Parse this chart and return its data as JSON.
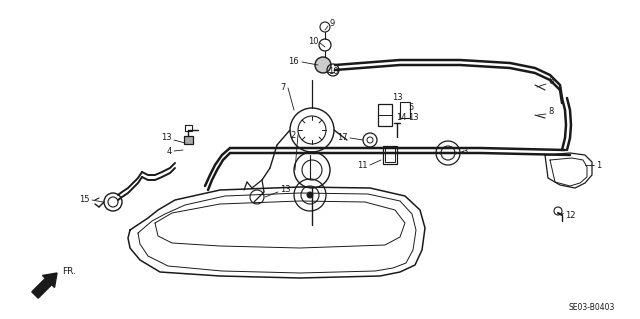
{
  "background_color": "#ffffff",
  "line_color": "#1a1a1a",
  "fig_width": 6.4,
  "fig_height": 3.19,
  "dpi": 100,
  "diagram_code": "SE03-B0403"
}
